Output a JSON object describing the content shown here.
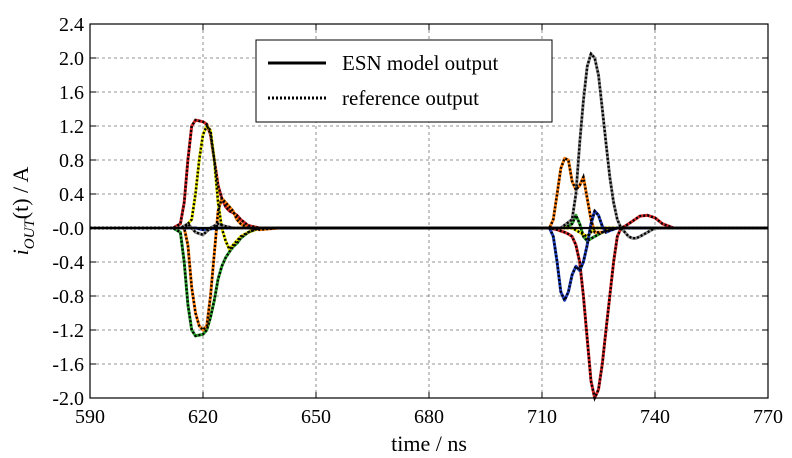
{
  "chart_data": {
    "type": "line",
    "title": "",
    "xlabel": "time / ns",
    "ylabel_main": "i",
    "ylabel_sub": "OUT",
    "ylabel_rest": "(t) / A",
    "xlim": [
      590,
      770
    ],
    "ylim": [
      -2.0,
      2.4
    ],
    "xticks": [
      "590",
      "620",
      "650",
      "680",
      "710",
      "740",
      "770"
    ],
    "yticks": [
      "-2.0",
      "-1.6",
      "-1.2",
      "-0.8",
      "-0.4",
      "-0.0",
      "0.4",
      "0.8",
      "1.2",
      "1.6",
      "2.0",
      "2.4"
    ],
    "grid": true,
    "legend_placement": "top-center",
    "legend": [
      {
        "label": "ESN model output",
        "style": "solid"
      },
      {
        "label": "reference output",
        "style": "dotted"
      }
    ],
    "series": [
      {
        "color": "#d62728",
        "x": [
          590,
          612,
          614,
          615,
          616,
          617,
          618,
          619,
          620,
          621,
          622,
          623,
          624,
          625,
          626,
          627,
          628,
          629,
          630,
          632,
          635,
          640,
          645,
          650,
          700,
          710,
          712,
          714,
          716,
          717,
          718,
          719,
          720,
          721,
          722,
          723,
          724,
          725,
          726,
          727,
          728,
          729,
          730,
          731,
          732,
          734,
          736,
          738,
          740,
          742,
          745,
          750,
          770
        ],
        "y": [
          0,
          0,
          0.05,
          0.3,
          0.8,
          1.2,
          1.27,
          1.26,
          1.25,
          1.22,
          1.1,
          0.8,
          0.5,
          0.35,
          0.25,
          0.2,
          0.18,
          0.15,
          0.1,
          0.03,
          0,
          0,
          0,
          0,
          0,
          0,
          0,
          -0.02,
          -0.05,
          -0.07,
          -0.1,
          -0.2,
          -0.4,
          -0.8,
          -1.3,
          -1.8,
          -2.0,
          -1.9,
          -1.6,
          -1.2,
          -0.8,
          -0.4,
          -0.1,
          0,
          0.02,
          0.08,
          0.14,
          0.15,
          0.12,
          0.05,
          0,
          0,
          0
        ]
      },
      {
        "color": "#2ca02c",
        "x": [
          590,
          612,
          614,
          615,
          616,
          617,
          618,
          619,
          620,
          621,
          622,
          623,
          624,
          625,
          626,
          627,
          628,
          629,
          630,
          632,
          635,
          640,
          650,
          710,
          714,
          716,
          718,
          719,
          720,
          721,
          722,
          724,
          726,
          728,
          730,
          735,
          770
        ],
        "y": [
          0,
          0,
          -0.05,
          -0.4,
          -0.9,
          -1.2,
          -1.27,
          -1.26,
          -1.25,
          -1.2,
          -1.05,
          -0.85,
          -0.6,
          -0.45,
          -0.35,
          -0.28,
          -0.22,
          -0.18,
          -0.12,
          -0.05,
          0,
          0,
          0,
          0,
          0,
          0,
          0.05,
          0.15,
          0.05,
          -0.1,
          -0.15,
          -0.1,
          -0.05,
          -0.02,
          0,
          0,
          0
        ]
      },
      {
        "color": "#ff7f0e",
        "x": [
          590,
          615,
          616,
          617,
          618,
          619,
          620,
          621,
          622,
          623,
          624,
          625,
          626,
          627,
          628,
          629,
          630,
          632,
          635,
          640,
          645,
          650,
          710,
          712,
          713,
          714,
          715,
          716,
          717,
          718,
          719,
          720,
          721,
          722,
          723,
          724,
          726,
          728,
          730,
          735,
          770
        ],
        "y": [
          0,
          0,
          -0.2,
          -0.7,
          -1.0,
          -1.15,
          -1.2,
          -1.15,
          -0.8,
          -0.3,
          0.2,
          0.35,
          0.3,
          0.25,
          0.2,
          0.1,
          0.05,
          0,
          -0.02,
          0,
          0,
          0,
          0,
          0,
          0.1,
          0.4,
          0.7,
          0.82,
          0.8,
          0.55,
          0.45,
          0.5,
          0.6,
          0.35,
          0.1,
          -0.05,
          -0.05,
          0,
          0,
          0,
          0
        ]
      },
      {
        "color": "#e8e800",
        "x": [
          590,
          615,
          617,
          618,
          619,
          620,
          621,
          622,
          623,
          624,
          625,
          626,
          627,
          628,
          629,
          630,
          632,
          635,
          640,
          650,
          710,
          716,
          718,
          720,
          722,
          724,
          726,
          730,
          770
        ],
        "y": [
          0,
          0,
          0.1,
          0.4,
          0.8,
          1.1,
          1.2,
          1.15,
          0.8,
          0.3,
          0,
          -0.15,
          -0.25,
          -0.2,
          -0.15,
          -0.1,
          -0.05,
          0,
          0,
          0,
          0,
          0,
          0,
          -0.05,
          -0.1,
          0,
          0,
          0,
          0
        ]
      },
      {
        "color": "#1f3fbf",
        "x": [
          590,
          618,
          620,
          622,
          624,
          626,
          630,
          710,
          712,
          713,
          714,
          715,
          716,
          717,
          718,
          719,
          720,
          721,
          722,
          723,
          724,
          725,
          726,
          727,
          728,
          730,
          735,
          770
        ],
        "y": [
          0,
          0,
          -0.02,
          -0.01,
          0,
          0,
          0,
          0,
          0,
          -0.1,
          -0.4,
          -0.75,
          -0.85,
          -0.75,
          -0.55,
          -0.45,
          -0.5,
          -0.4,
          -0.2,
          0.05,
          0.2,
          0.15,
          0.02,
          -0.05,
          -0.03,
          0,
          0,
          0
        ]
      },
      {
        "color": "#888888",
        "x": [
          590,
          614,
          616,
          618,
          620,
          622,
          624,
          626,
          628,
          630,
          710,
          715,
          718,
          719,
          720,
          721,
          722,
          723,
          724,
          725,
          726,
          727,
          728,
          729,
          730,
          731,
          732,
          733,
          734,
          735,
          736,
          738,
          740,
          745,
          770
        ],
        "y": [
          0,
          0,
          0.05,
          -0.05,
          -0.08,
          0,
          0.05,
          0.02,
          0,
          0,
          0,
          0,
          0.1,
          0.4,
          1.0,
          1.5,
          1.9,
          2.05,
          2.0,
          1.8,
          1.4,
          1.0,
          0.6,
          0.3,
          0.1,
          0,
          -0.05,
          -0.1,
          -0.12,
          -0.12,
          -0.1,
          -0.05,
          0,
          0,
          0
        ]
      }
    ]
  }
}
